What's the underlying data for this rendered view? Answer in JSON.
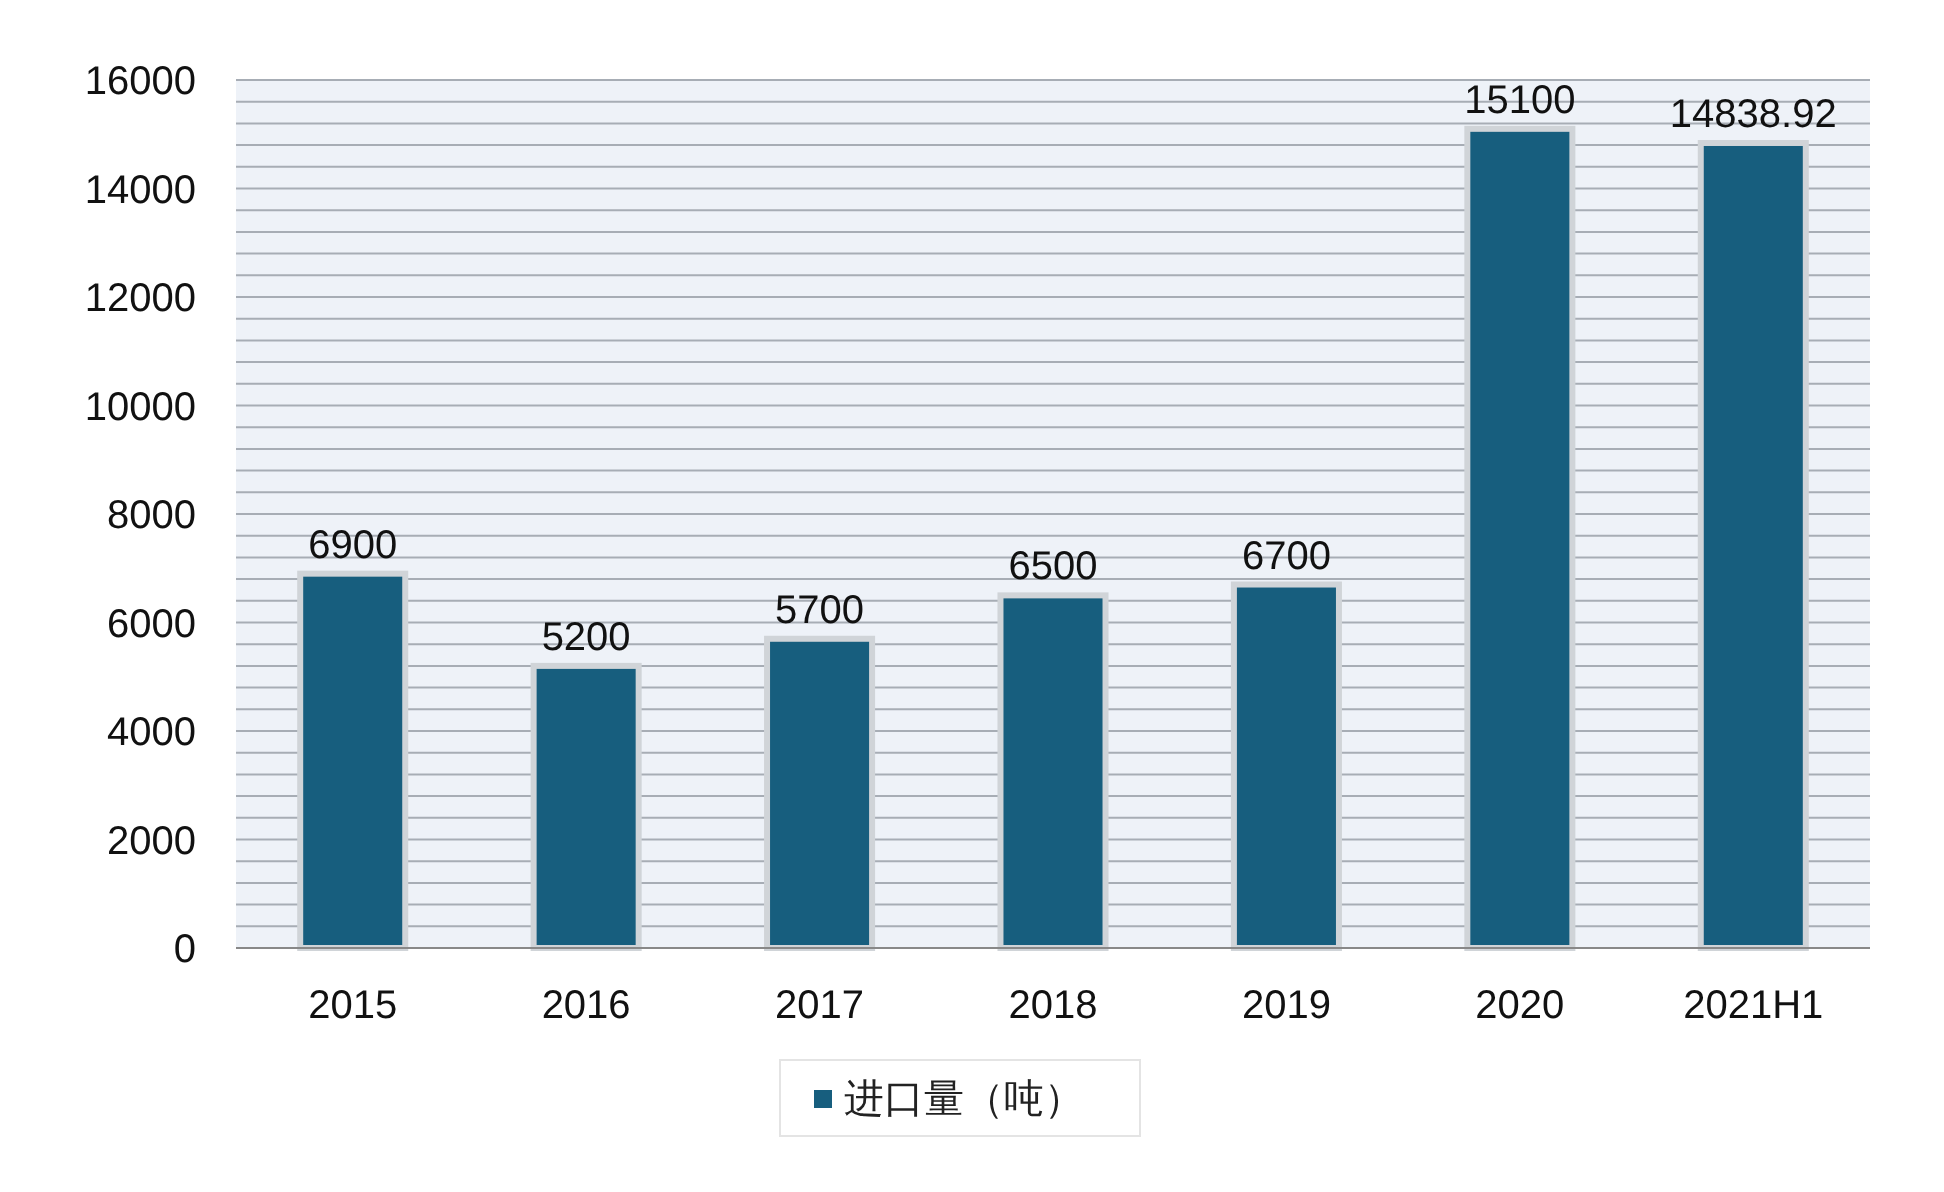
{
  "chart_data": {
    "type": "bar",
    "categories": [
      "2015",
      "2016",
      "2017",
      "2018",
      "2019",
      "2020",
      "2021H1"
    ],
    "series": [
      {
        "name": "进口量（吨）",
        "color": "#175e7e",
        "values": [
          6900,
          5200,
          5700,
          6500,
          6700,
          15100,
          14838.92
        ]
      }
    ],
    "ylim": [
      0,
      16000
    ],
    "yticks": [
      0,
      {
        "value": 400,
        "label": null
      },
      {
        "value": 800,
        "label": null
      },
      {
        "value": 1200,
        "label": null
      },
      {
        "value": 1600,
        "label": null
      },
      2000,
      {
        "value": 2400,
        "label": null
      },
      {
        "value": 2800,
        "label": null
      },
      {
        "value": 3200,
        "label": null
      },
      {
        "value": 3600,
        "label": null
      },
      4000,
      {
        "value": 4400,
        "label": null
      },
      {
        "value": 4800,
        "label": null
      },
      {
        "value": 5200,
        "label": null
      },
      {
        "value": 5600,
        "label": null
      },
      6000,
      {
        "value": 6400,
        "label": null
      },
      {
        "value": 6800,
        "label": null
      },
      {
        "value": 7200,
        "label": null
      },
      {
        "value": 7600,
        "label": null
      },
      8000,
      {
        "value": 8400,
        "label": null
      },
      {
        "value": 8800,
        "label": null
      },
      {
        "value": 9200,
        "label": null
      },
      {
        "value": 9600,
        "label": null
      },
      10000,
      {
        "value": 10400,
        "label": null
      },
      {
        "value": 10800,
        "label": null
      },
      {
        "value": 11200,
        "label": null
      },
      {
        "value": 11600,
        "label": null
      },
      12000,
      {
        "value": 12400,
        "label": null
      },
      {
        "value": 12800,
        "label": null
      },
      {
        "value": 13200,
        "label": null
      },
      {
        "value": 13600,
        "label": null
      },
      14000,
      {
        "value": 14400,
        "label": null
      },
      {
        "value": 14800,
        "label": null
      },
      {
        "value": 15200,
        "label": null
      },
      {
        "value": 15600,
        "label": null
      },
      16000
    ],
    "grid": "y",
    "legend": "bottom",
    "data_labels": true
  }
}
